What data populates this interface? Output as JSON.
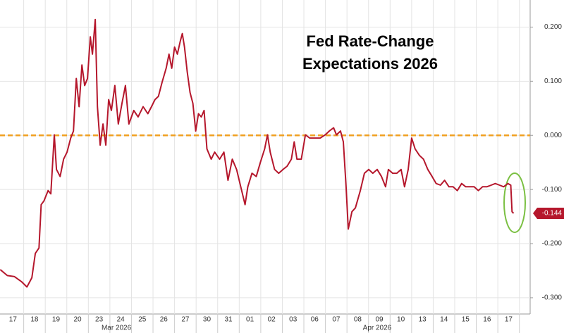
{
  "chart_data": {
    "type": "line",
    "title": [
      "Fed Rate-Change",
      "Expectations 2026"
    ],
    "x": [
      -0.59,
      -0.26,
      0.07,
      0.39,
      0.65,
      0.88,
      1.04,
      1.21,
      1.31,
      1.44,
      1.63,
      1.76,
      1.92,
      2.02,
      2.19,
      2.35,
      2.51,
      2.68,
      2.81,
      2.94,
      3.07,
      3.2,
      3.33,
      3.46,
      3.59,
      3.69,
      3.82,
      3.92,
      4.05,
      4.18,
      4.31,
      4.44,
      4.57,
      4.73,
      4.89,
      5.06,
      5.22,
      5.38,
      5.61,
      5.81,
      6.04,
      6.26,
      6.43,
      6.59,
      6.75,
      6.92,
      7.11,
      7.24,
      7.37,
      7.5,
      7.63,
      7.77,
      7.86,
      7.96,
      8.09,
      8.22,
      8.35,
      8.48,
      8.61,
      8.74,
      8.87,
      9.0,
      9.2,
      9.36,
      9.59,
      9.79,
      9.98,
      10.18,
      10.38,
      10.57,
      10.77,
      10.9,
      11.09,
      11.29,
      11.48,
      11.68,
      11.81,
      11.94,
      12.14,
      12.33,
      12.53,
      12.72,
      12.92,
      13.05,
      13.18,
      13.38,
      13.57,
      13.77,
      14.03,
      14.26,
      14.49,
      14.68,
      14.88,
      15.01,
      15.2,
      15.33,
      15.46,
      15.56,
      15.73,
      15.89,
      16.12,
      16.31,
      16.51,
      16.7,
      16.9,
      17.1,
      17.29,
      17.42,
      17.62,
      17.81,
      18.01,
      18.17,
      18.34,
      18.5,
      18.66,
      18.86,
      19.05,
      19.25,
      19.45,
      19.64,
      19.84,
      20.03,
      20.23,
      20.42,
      20.62,
      20.82,
      21.01,
      21.21,
      21.4,
      21.6,
      21.79,
      21.99,
      22.19,
      22.38,
      22.58,
      22.77,
      22.97,
      23.1,
      23.16,
      23.23
    ],
    "series": [
      {
        "color": "#b5172c",
        "values": [
          -0.248,
          -0.259,
          -0.261,
          -0.27,
          -0.28,
          -0.263,
          -0.218,
          -0.208,
          -0.128,
          -0.121,
          -0.102,
          -0.108,
          0.001,
          -0.063,
          -0.076,
          -0.044,
          -0.031,
          -0.005,
          0.008,
          0.105,
          0.053,
          0.13,
          0.092,
          0.105,
          0.182,
          0.15,
          0.214,
          0.053,
          -0.018,
          0.021,
          -0.018,
          0.066,
          0.046,
          0.092,
          0.021,
          0.059,
          0.092,
          0.021,
          0.046,
          0.034,
          0.053,
          0.04,
          0.053,
          0.066,
          0.072,
          0.098,
          0.124,
          0.15,
          0.124,
          0.163,
          0.15,
          0.175,
          0.188,
          0.163,
          0.117,
          0.079,
          0.059,
          0.008,
          0.04,
          0.034,
          0.046,
          -0.025,
          -0.044,
          -0.031,
          -0.044,
          -0.031,
          -0.083,
          -0.044,
          -0.063,
          -0.095,
          -0.128,
          -0.095,
          -0.07,
          -0.076,
          -0.05,
          -0.025,
          0.001,
          -0.031,
          -0.063,
          -0.07,
          -0.063,
          -0.057,
          -0.044,
          -0.012,
          -0.044,
          -0.044,
          0.001,
          -0.005,
          -0.005,
          -0.005,
          0.001,
          0.008,
          0.014,
          0.001,
          0.008,
          -0.012,
          -0.095,
          -0.173,
          -0.141,
          -0.134,
          -0.102,
          -0.07,
          -0.063,
          -0.07,
          -0.063,
          -0.076,
          -0.095,
          -0.063,
          -0.07,
          -0.07,
          -0.063,
          -0.095,
          -0.063,
          -0.005,
          -0.025,
          -0.037,
          -0.044,
          -0.063,
          -0.076,
          -0.089,
          -0.092,
          -0.083,
          -0.095,
          -0.095,
          -0.102,
          -0.089,
          -0.095,
          -0.095,
          -0.095,
          -0.102,
          -0.095,
          -0.095,
          -0.092,
          -0.089,
          -0.092,
          -0.095,
          -0.089,
          -0.092,
          -0.141,
          -0.144
        ]
      }
    ],
    "last_label": {
      "value": -0.144,
      "label": "-0.144"
    },
    "reference_line": {
      "value": 0,
      "color": "#f0a020"
    },
    "xlim": [
      -0.6,
      24
    ],
    "ylim": [
      -0.33,
      0.25
    ],
    "xticks": [
      {
        "value": 0,
        "label": "17"
      },
      {
        "value": 1,
        "label": "18"
      },
      {
        "value": 2,
        "label": "19"
      },
      {
        "value": 3,
        "label": "20"
      },
      {
        "value": 4,
        "label": "23"
      },
      {
        "value": 5,
        "label": "24"
      },
      {
        "value": 6,
        "label": "25"
      },
      {
        "value": 7,
        "label": "26"
      },
      {
        "value": 8,
        "label": "27"
      },
      {
        "value": 9,
        "label": "30"
      },
      {
        "value": 10,
        "label": "31"
      },
      {
        "value": 11,
        "label": "01"
      },
      {
        "value": 12,
        "label": "02"
      },
      {
        "value": 13,
        "label": "03"
      },
      {
        "value": 14,
        "label": "06"
      },
      {
        "value": 15,
        "label": "07"
      },
      {
        "value": 16,
        "label": "08"
      },
      {
        "value": 17,
        "label": "09"
      },
      {
        "value": 18,
        "label": "10"
      },
      {
        "value": 19,
        "label": "13"
      },
      {
        "value": 20,
        "label": "14"
      },
      {
        "value": 21,
        "label": "15"
      },
      {
        "value": 22,
        "label": "16"
      },
      {
        "value": 23,
        "label": "17"
      }
    ],
    "month_ticks": [
      {
        "value": 4.8,
        "label": "Mar 2026"
      },
      {
        "value": 16.9,
        "label": "Apr 2026"
      }
    ],
    "yticks": [
      {
        "value": 0.2,
        "label": "0.200"
      },
      {
        "value": 0.1,
        "label": "0.100"
      },
      {
        "value": 0,
        "label": "0.000"
      },
      {
        "value": -0.1,
        "label": "-0.100"
      },
      {
        "value": -0.2,
        "label": "-0.200"
      },
      {
        "value": -0.3,
        "label": "-0.300"
      }
    ],
    "grid": true
  }
}
